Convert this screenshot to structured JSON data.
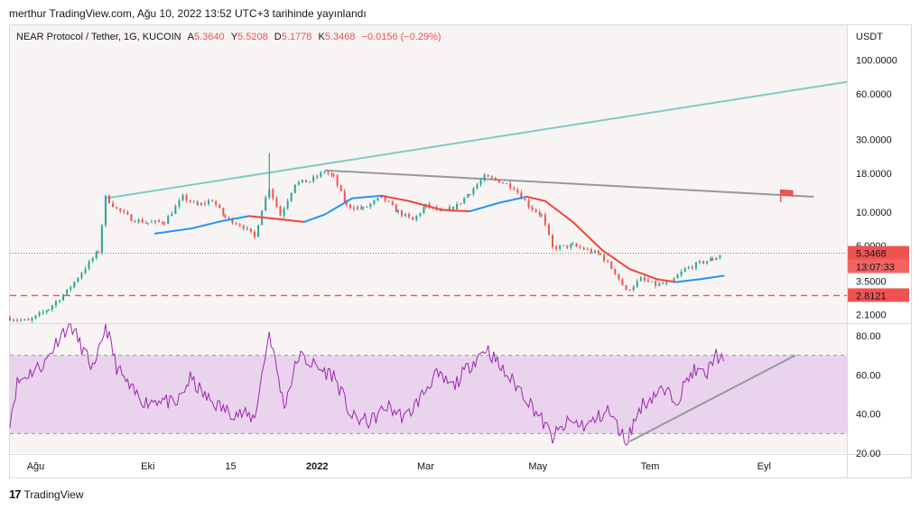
{
  "publish_line": "merthur TradingView.com, Ağu 10, 2022 13:52 UTC+3 tarihinde yayınlandı",
  "legend": {
    "symbol": "NEAR Protocol / Tether, 1G, KUCOIN",
    "open_label": "A",
    "open": "5.3640",
    "high_label": "Y",
    "high": "5.5208",
    "low_label": "D",
    "low": "5.1778",
    "close_label": "K",
    "close": "5.3468",
    "change": "−0.0156 (−0.29%)"
  },
  "footer": {
    "brand": "TradingView",
    "logo_text": "17"
  },
  "chart_data": [
    {
      "type": "candlestick",
      "title": "NEAR Protocol / Tether, 1G, KUCOIN",
      "y_scale": "log",
      "y_unit": "USDT",
      "y_ticks": [
        "100.0000",
        "60.0000",
        "30.0000",
        "18.0000",
        "10.0000",
        "6.0000",
        "3.5000",
        "2.1000"
      ],
      "y_tick_values": [
        100,
        60,
        30,
        18,
        10,
        6,
        3.5,
        2.1
      ],
      "ylim": [
        1.85,
        170
      ],
      "x_ticks": [
        "Ağu",
        "Eki",
        "15",
        "2022",
        "Mar",
        "May",
        "Tem",
        "Eyl"
      ],
      "x_tick_dates": [
        "2021-08-01",
        "2021-10-01",
        "2021-11-15",
        "2022-01-01",
        "2022-03-01",
        "2022-05-01",
        "2022-07-01",
        "2022-09-01"
      ],
      "xlim": [
        "2021-07-18",
        "2022-10-16"
      ],
      "last_price": {
        "value": 5.3468,
        "label": "5.3468",
        "countdown": "13:07:33",
        "color": "#ef5350"
      },
      "support_level": {
        "value": 2.8121,
        "label": "2.8121",
        "color": "#ef5350",
        "style": "dashed"
      },
      "close_path": [
        [
          "2021-07-18",
          2.0
        ],
        [
          "2021-07-28",
          1.9
        ],
        [
          "2021-08-08",
          2.3
        ],
        [
          "2021-08-18",
          3.0
        ],
        [
          "2021-08-28",
          4.3
        ],
        [
          "2021-09-04",
          5.5
        ],
        [
          "2021-09-08",
          12.5
        ],
        [
          "2021-09-14",
          10.5
        ],
        [
          "2021-09-22",
          9.0
        ],
        [
          "2021-10-01",
          8.5
        ],
        [
          "2021-10-10",
          8.6
        ],
        [
          "2021-10-20",
          12.5
        ],
        [
          "2021-10-28",
          11.0
        ],
        [
          "2021-11-05",
          12.0
        ],
        [
          "2021-11-12",
          9.2
        ],
        [
          "2021-11-22",
          8.0
        ],
        [
          "2021-11-28",
          6.8
        ],
        [
          "2021-12-02",
          10.5
        ],
        [
          "2021-12-06",
          14.5
        ],
        [
          "2021-12-12",
          9.5
        ],
        [
          "2021-12-20",
          15.5
        ],
        [
          "2021-12-28",
          16.0
        ],
        [
          "2022-01-05",
          18.5
        ],
        [
          "2022-01-10",
          17.0
        ],
        [
          "2022-01-17",
          11.0
        ],
        [
          "2022-01-26",
          10.5
        ],
        [
          "2022-02-05",
          12.5
        ],
        [
          "2022-02-14",
          10.0
        ],
        [
          "2022-02-22",
          8.8
        ],
        [
          "2022-03-01",
          11.0
        ],
        [
          "2022-03-10",
          10.0
        ],
        [
          "2022-03-18",
          11.0
        ],
        [
          "2022-03-25",
          13.5
        ],
        [
          "2022-04-02",
          17.0
        ],
        [
          "2022-04-10",
          16.0
        ],
        [
          "2022-04-18",
          14.5
        ],
        [
          "2022-04-26",
          11.0
        ],
        [
          "2022-05-03",
          9.5
        ],
        [
          "2022-05-09",
          5.8
        ],
        [
          "2022-05-20",
          6.0
        ],
        [
          "2022-05-28",
          5.6
        ],
        [
          "2022-06-04",
          5.2
        ],
        [
          "2022-06-12",
          4.0
        ],
        [
          "2022-06-18",
          3.0
        ],
        [
          "2022-06-26",
          3.6
        ],
        [
          "2022-07-04",
          3.3
        ],
        [
          "2022-07-12",
          3.4
        ],
        [
          "2022-07-20",
          4.2
        ],
        [
          "2022-07-28",
          4.6
        ],
        [
          "2022-08-04",
          4.9
        ],
        [
          "2022-08-10",
          5.35
        ]
      ],
      "moving_average": {
        "color_rising": "#2196f3",
        "color_falling": "#f44336",
        "points": [
          [
            "2021-10-05",
            7.2
          ],
          [
            "2021-10-25",
            7.8
          ],
          [
            "2021-11-10",
            8.7
          ],
          [
            "2021-11-25",
            9.4
          ],
          [
            "2021-12-10",
            9.0
          ],
          [
            "2021-12-25",
            8.6
          ],
          [
            "2022-01-05",
            9.6
          ],
          [
            "2022-01-20",
            12.3
          ],
          [
            "2022-02-05",
            12.8
          ],
          [
            "2022-02-20",
            11.8
          ],
          [
            "2022-03-10",
            10.3
          ],
          [
            "2022-03-25",
            10.1
          ],
          [
            "2022-04-10",
            11.5
          ],
          [
            "2022-04-25",
            12.6
          ],
          [
            "2022-05-05",
            11.8
          ],
          [
            "2022-05-20",
            8.6
          ],
          [
            "2022-06-05",
            5.6
          ],
          [
            "2022-06-20",
            4.2
          ],
          [
            "2022-07-05",
            3.6
          ],
          [
            "2022-07-15",
            3.45
          ],
          [
            "2022-07-28",
            3.6
          ],
          [
            "2022-08-10",
            3.8
          ]
        ]
      },
      "trendlines": [
        {
          "name": "rising",
          "color": "#80cbc4",
          "start": [
            "2021-09-08",
            12.3
          ],
          "end": [
            "2022-10-16",
            72
          ]
        },
        {
          "name": "falling",
          "color": "#9598a1",
          "start": [
            "2022-01-05",
            18.8
          ],
          "end": [
            "2022-09-28",
            12.6
          ]
        }
      ],
      "flag_marker": {
        "date": "2022-09-10",
        "value": 12.8,
        "color": "#ef5350"
      }
    },
    {
      "type": "line",
      "panel": "RSI",
      "y_ticks": [
        "80.00",
        "60.00",
        "40.00",
        "20.00"
      ],
      "y_tick_values": [
        80,
        60,
        40,
        20
      ],
      "ylim": [
        20,
        86
      ],
      "band": [
        30,
        70
      ],
      "line_color": "#9c27b0",
      "band_color": "#e1bee7",
      "values": [
        [
          "2021-07-18",
          37
        ],
        [
          "2021-07-22",
          56
        ],
        [
          "2021-07-30",
          62
        ],
        [
          "2021-08-06",
          66
        ],
        [
          "2021-08-14",
          80
        ],
        [
          "2021-08-20",
          86
        ],
        [
          "2021-08-26",
          74
        ],
        [
          "2021-09-02",
          62
        ],
        [
          "2021-09-08",
          86
        ],
        [
          "2021-09-14",
          64
        ],
        [
          "2021-09-22",
          52
        ],
        [
          "2021-09-30",
          46
        ],
        [
          "2021-10-08",
          48
        ],
        [
          "2021-10-16",
          44
        ],
        [
          "2021-10-24",
          58
        ],
        [
          "2021-11-02",
          48
        ],
        [
          "2021-11-12",
          42
        ],
        [
          "2021-11-20",
          40
        ],
        [
          "2021-11-28",
          38
        ],
        [
          "2021-12-06",
          82
        ],
        [
          "2021-12-14",
          44
        ],
        [
          "2021-12-22",
          70
        ],
        [
          "2022-01-04",
          62
        ],
        [
          "2022-01-10",
          60
        ],
        [
          "2022-01-20",
          38
        ],
        [
          "2022-01-30",
          36
        ],
        [
          "2022-02-08",
          44
        ],
        [
          "2022-02-18",
          38
        ],
        [
          "2022-02-26",
          48
        ],
        [
          "2022-03-06",
          60
        ],
        [
          "2022-03-16",
          54
        ],
        [
          "2022-03-26",
          66
        ],
        [
          "2022-04-03",
          74
        ],
        [
          "2022-04-12",
          62
        ],
        [
          "2022-04-22",
          52
        ],
        [
          "2022-05-01",
          40
        ],
        [
          "2022-05-09",
          28
        ],
        [
          "2022-05-18",
          36
        ],
        [
          "2022-05-28",
          34
        ],
        [
          "2022-06-08",
          42
        ],
        [
          "2022-06-18",
          26
        ],
        [
          "2022-06-26",
          44
        ],
        [
          "2022-07-06",
          52
        ],
        [
          "2022-07-16",
          48
        ],
        [
          "2022-07-24",
          62
        ],
        [
          "2022-08-01",
          60
        ],
        [
          "2022-08-05",
          71
        ],
        [
          "2022-08-10",
          67
        ]
      ],
      "trendline": {
        "color": "#9598a1",
        "start": [
          "2022-06-20",
          26
        ],
        "end": [
          "2022-09-18",
          70
        ]
      }
    }
  ]
}
